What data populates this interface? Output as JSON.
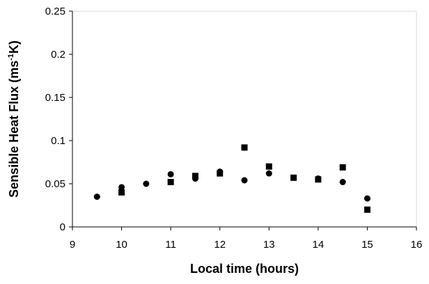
{
  "chart_data": {
    "type": "scatter",
    "xlabel": "Local time (hours)",
    "ylabel_parts": {
      "main": "Sensible Heat Flux (ms",
      "sup": "-1",
      "end": "K)"
    },
    "xlim": [
      9,
      16
    ],
    "ylim": [
      0,
      0.25
    ],
    "x_ticks": [
      "9",
      "10",
      "11",
      "12",
      "13",
      "14",
      "15",
      "16"
    ],
    "y_ticks": [
      "0",
      "0.05",
      "0.1",
      "0.15",
      "0.2",
      "0.25"
    ],
    "grid": false,
    "series": [
      {
        "marker": "circle",
        "points": [
          {
            "x": 9.5,
            "y": 0.035
          },
          {
            "x": 10,
            "y": 0.046
          },
          {
            "x": 10.5,
            "y": 0.05
          },
          {
            "x": 11,
            "y": 0.061
          },
          {
            "x": 11.5,
            "y": 0.056
          },
          {
            "x": 12,
            "y": 0.064
          },
          {
            "x": 12.5,
            "y": 0.054
          },
          {
            "x": 13,
            "y": 0.062
          },
          {
            "x": 14,
            "y": 0.056
          },
          {
            "x": 14.5,
            "y": 0.052
          },
          {
            "x": 15,
            "y": 0.033
          }
        ]
      },
      {
        "marker": "square",
        "points": [
          {
            "x": 10,
            "y": 0.04
          },
          {
            "x": 11,
            "y": 0.052
          },
          {
            "x": 11.5,
            "y": 0.059
          },
          {
            "x": 12,
            "y": 0.062
          },
          {
            "x": 12.5,
            "y": 0.092
          },
          {
            "x": 13,
            "y": 0.07
          },
          {
            "x": 13.5,
            "y": 0.057
          },
          {
            "x": 14,
            "y": 0.055
          },
          {
            "x": 14.5,
            "y": 0.069
          },
          {
            "x": 15,
            "y": 0.02
          }
        ]
      }
    ],
    "colors": {
      "marker": "#000000",
      "axis": "#000000",
      "frame": "#a0a0a0"
    }
  }
}
